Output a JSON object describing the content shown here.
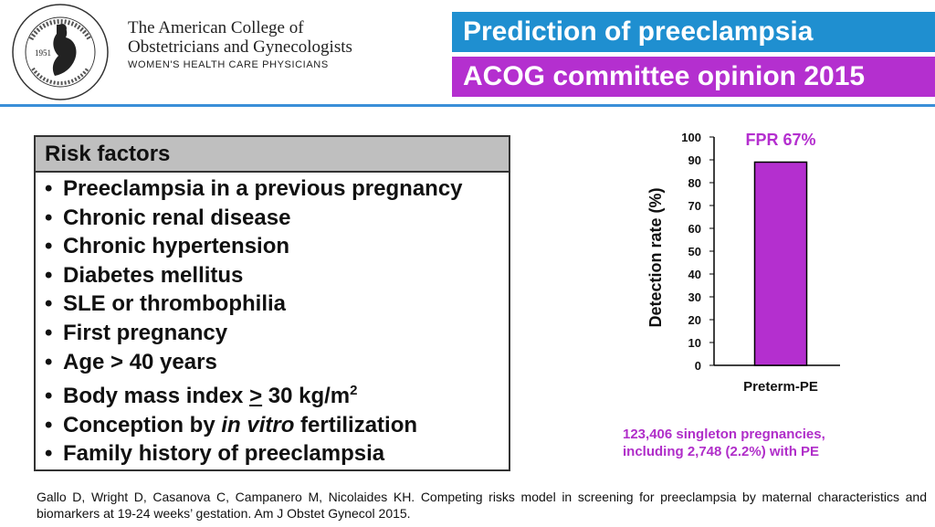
{
  "header": {
    "seal_year": "1951",
    "org_line1": "The American College of",
    "org_line2": "Obstetricians and Gynecologists",
    "org_line3": "WOMEN'S HEALTH CARE PHYSICIANS",
    "title": "Prediction of preeclampsia",
    "subtitle": "ACOG committee opinion 2015",
    "colors": {
      "title_bg": "#1f8fd0",
      "subtitle_bg": "#b42fcf",
      "rule": "#3a8fd8"
    }
  },
  "risk_box": {
    "heading": "Risk factors",
    "items": [
      "Preeclampsia in a previous pregnancy",
      "Chronic renal disease",
      "Chronic hypertension",
      "Diabetes mellitus",
      "SLE or thrombophilia",
      "First pregnancy",
      "Age > 40 years",
      "Body mass index > 30 kg/m2",
      "Conception by in vitro fertilization",
      "Family history of preeclampsia"
    ]
  },
  "chart_data": {
    "type": "bar",
    "title": "FPR 67%",
    "ylabel": "Detection  rate  (%)",
    "xlabel": "",
    "categories": [
      "Preterm-PE"
    ],
    "values": [
      89
    ],
    "ylim": [
      0,
      100
    ],
    "yticks": [
      0,
      10,
      20,
      30,
      40,
      50,
      60,
      70,
      80,
      90,
      100
    ],
    "bar_color": "#b42fcf",
    "title_color": "#b42fcf",
    "grid": false
  },
  "note": {
    "line1": "123,406 singleton pregnancies,",
    "line2": "including 2,748 (2.2%) with PE"
  },
  "reference": "Gallo D, Wright D, Casanova C, Campanero M, Nicolaides KH. Competing risks model in screening for preeclampsia by maternal characteristics and biomarkers at 19-24 weeks’ gestation. Am J Obstet Gynecol 2015."
}
